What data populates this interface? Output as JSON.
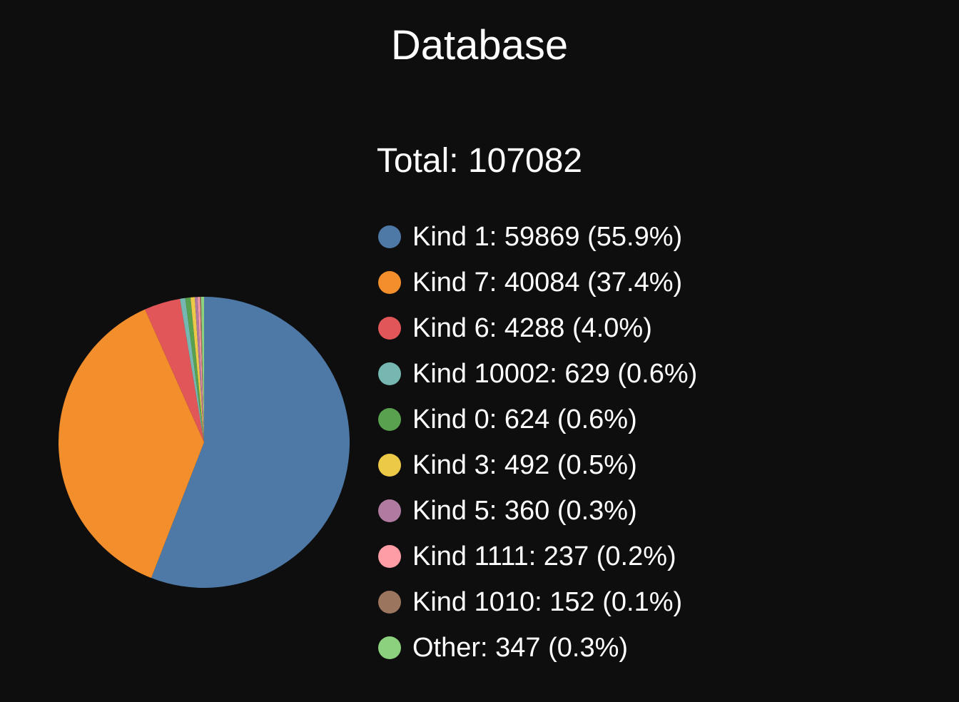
{
  "header": {
    "title": "Database"
  },
  "chart_data": {
    "type": "pie",
    "total_label": "Total: 107082",
    "total": 107082,
    "slices": [
      {
        "label": "Kind 1: 59869 (55.9%)",
        "value": 59869,
        "color": "#4e79a7"
      },
      {
        "label": "Kind 7: 40084 (37.4%)",
        "value": 40084,
        "color": "#f28e2b"
      },
      {
        "label": "Kind 6: 4288 (4.0%)",
        "value": 4288,
        "color": "#e15759"
      },
      {
        "label": "Kind 10002: 629 (0.6%)",
        "value": 629,
        "color": "#76b7b2"
      },
      {
        "label": "Kind 0: 624 (0.6%)",
        "value": 624,
        "color": "#59a14f"
      },
      {
        "label": "Kind 3: 492 (0.5%)",
        "value": 492,
        "color": "#edc948"
      },
      {
        "label": "Kind 5: 360 (0.3%)",
        "value": 360,
        "color": "#b07aa1"
      },
      {
        "label": "Kind 1111: 237 (0.2%)",
        "value": 237,
        "color": "#ff9da7"
      },
      {
        "label": "Kind 1010: 152 (0.1%)",
        "value": 152,
        "color": "#9c755f"
      },
      {
        "label": "Other: 347 (0.3%)",
        "value": 347,
        "color": "#8cd17d"
      }
    ],
    "legend_position": "right"
  }
}
